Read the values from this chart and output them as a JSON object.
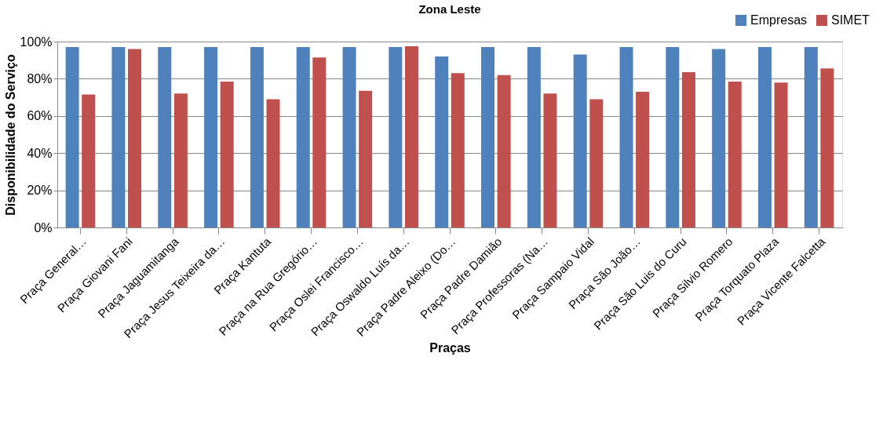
{
  "chart_data": {
    "type": "bar",
    "title": "Zona Leste",
    "xlabel": "Praças",
    "ylabel": "Disponibilidade do Serviço",
    "categories": [
      "Praça General…",
      "Praça Giovani Fani",
      "Praça Jaguamitanga",
      "Praça Jesus Teixeira da…",
      "Praça Kantuta",
      "Praça na Rua Gregório…",
      "Praça Oslei Francisco…",
      "Praça Oswaldo Luís da…",
      "Praça Padre Aleixo (Do…",
      "Praça Padre Damião",
      "Praça Professoras  (Na…",
      "Praça Sampaio Vidal",
      "Praça São João…",
      "Praça São Luis do Curu",
      "Praça Silvio Romero",
      "Praça Torquato Plaza",
      "Praça Vicente Falcetta"
    ],
    "series": [
      {
        "name": "Empresas",
        "color": "#4f81bd",
        "values": [
          97,
          97,
          97,
          97,
          97,
          97,
          97,
          97,
          92,
          97,
          97,
          93,
          97,
          97,
          96,
          97,
          97
        ]
      },
      {
        "name": "SIMET",
        "color": "#c0504d",
        "values": [
          71.5,
          96,
          72,
          78.5,
          69,
          91.5,
          73.5,
          97.5,
          83,
          82,
          72,
          69,
          73,
          83.5,
          78.5,
          78,
          85.5
        ]
      }
    ],
    "ylim": [
      0,
      100
    ],
    "yticks": [
      {
        "value": 0,
        "label": "0%"
      },
      {
        "value": 20,
        "label": "20%"
      },
      {
        "value": 40,
        "label": "40%"
      },
      {
        "value": 60,
        "label": "60%"
      },
      {
        "value": 80,
        "label": "80%"
      },
      {
        "value": 100,
        "label": "100%"
      }
    ],
    "grid": "y",
    "legend": "top right"
  }
}
